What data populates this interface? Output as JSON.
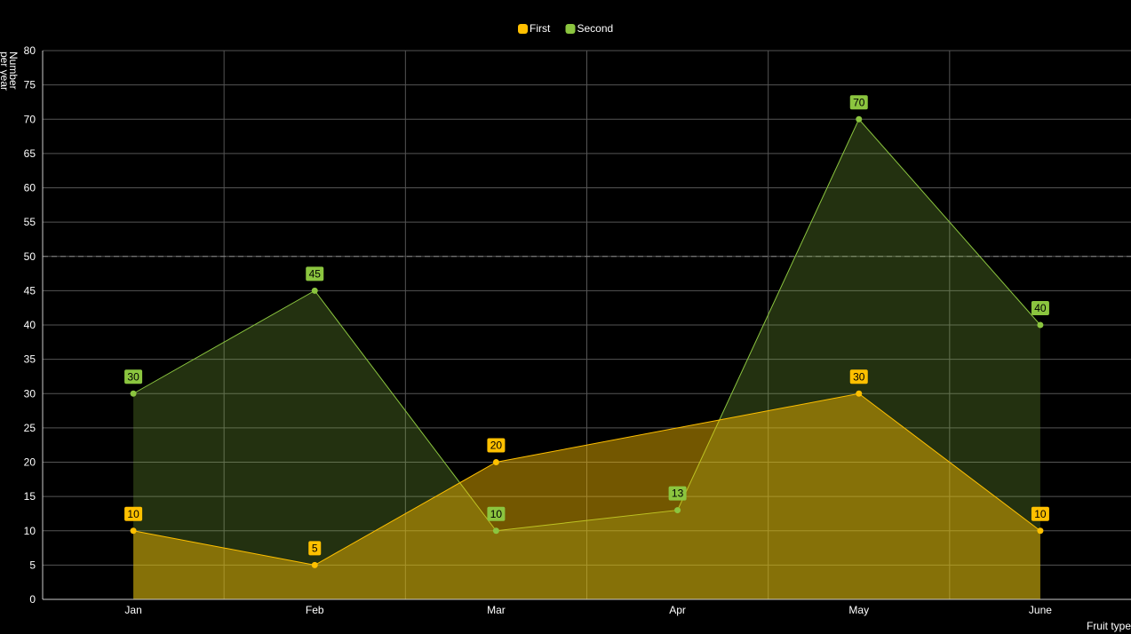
{
  "chart_data": {
    "type": "area",
    "categories": [
      "Jan",
      "Feb",
      "Mar",
      "Apr",
      "May",
      "June"
    ],
    "series": [
      {
        "name": "First",
        "color": "#ffc000",
        "points": [
          {
            "category": "Jan",
            "value": 10
          },
          {
            "category": "Feb",
            "value": 5
          },
          {
            "category": "Mar",
            "value": 20
          },
          {
            "category": "May",
            "value": 30
          },
          {
            "category": "June",
            "value": 10
          }
        ]
      },
      {
        "name": "Second",
        "color": "#8bc53f",
        "points": [
          {
            "category": "Jan",
            "value": 30
          },
          {
            "category": "Feb",
            "value": 45
          },
          {
            "category": "Mar",
            "value": 10
          },
          {
            "category": "Apr",
            "value": 13
          },
          {
            "category": "May",
            "value": 70
          },
          {
            "category": "June",
            "value": 40
          }
        ]
      }
    ],
    "ylim": [
      0,
      80
    ],
    "ytick_step": 5,
    "xlabel": "Fruit type",
    "ylabel": [
      "Number",
      "per year"
    ],
    "reference_line": 50,
    "grid": true,
    "legend_position": "top-center",
    "background": "#000000",
    "grid_color": "#555555"
  }
}
